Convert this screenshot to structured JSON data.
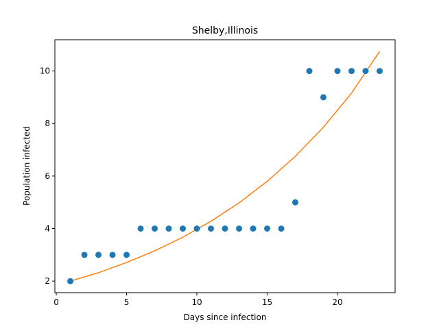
{
  "chart_data": {
    "type": "scatter",
    "title": "Shelby,Illinois",
    "xlabel": "Days since infection",
    "ylabel": "Population infected",
    "xlim": [
      -0.1,
      24.1
    ],
    "ylim": [
      1.56,
      11.19
    ],
    "xticks": [
      0,
      5,
      10,
      15,
      20
    ],
    "yticks": [
      2,
      4,
      6,
      8,
      10
    ],
    "grid": false,
    "colors": {
      "points": "#1f77b4",
      "fit": "#ff7f0e"
    },
    "series": [
      {
        "type": "scatter",
        "x": [
          1,
          2,
          3,
          4,
          5,
          6,
          7,
          8,
          9,
          10,
          11,
          12,
          13,
          14,
          15,
          16,
          17,
          18,
          19,
          20,
          21,
          22,
          23
        ],
        "y": [
          2,
          3,
          3,
          3,
          3,
          4,
          4,
          4,
          4,
          4,
          4,
          4,
          4,
          4,
          4,
          4,
          5,
          10,
          9,
          10,
          10,
          10,
          10
        ]
      },
      {
        "type": "line",
        "x": [
          1,
          3,
          5,
          7,
          9,
          11,
          13,
          15,
          17,
          19,
          21,
          23
        ],
        "y": [
          2.0,
          2.32,
          2.71,
          3.15,
          3.67,
          4.28,
          4.98,
          5.8,
          6.75,
          7.86,
          9.16,
          10.75
        ]
      }
    ]
  }
}
